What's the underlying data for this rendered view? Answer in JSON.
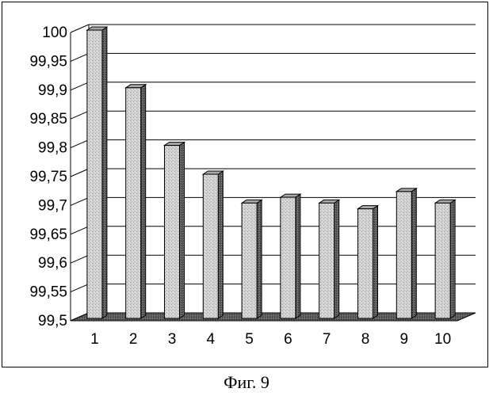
{
  "caption": "Фиг. 9",
  "chart_data": {
    "type": "bar",
    "categories": [
      "1",
      "2",
      "3",
      "4",
      "5",
      "6",
      "7",
      "8",
      "9",
      "10"
    ],
    "values": [
      100,
      99.9,
      99.8,
      99.75,
      99.7,
      99.71,
      99.7,
      99.69,
      99.72,
      99.7
    ],
    "title": "",
    "xlabel": "",
    "ylabel": "",
    "ylim": [
      99.5,
      100
    ],
    "y_ticks": [
      99.5,
      99.55,
      99.6,
      99.65,
      99.7,
      99.75,
      99.8,
      99.85,
      99.9,
      99.95,
      100
    ],
    "y_tick_labels": [
      "99,5",
      "99,55",
      "99,6",
      "99,65",
      "99,7",
      "99,75",
      "99,8",
      "99,85",
      "99,9",
      "99,95",
      "100"
    ],
    "grid": true,
    "legend": false,
    "style": "3d-column",
    "colors": {
      "bar_front": "#d2d2d2",
      "bar_side": "#5a5a5a",
      "bar_top": "#a8a8a8",
      "floor": "#6e6e6e",
      "grid": "#000000"
    }
  }
}
